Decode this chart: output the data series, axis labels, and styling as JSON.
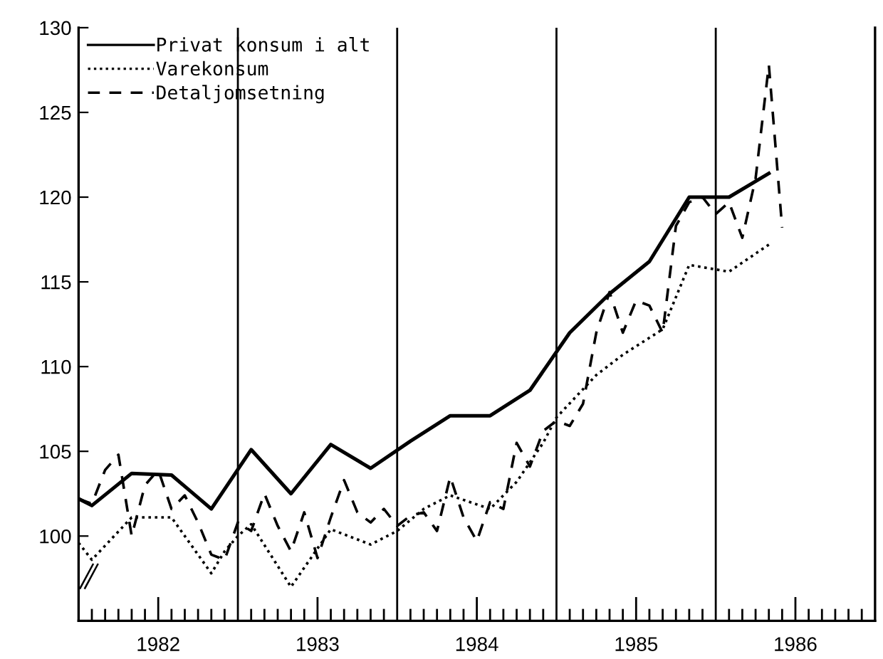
{
  "chart_data": {
    "type": "line",
    "xlim": [
      "1982-01",
      "1987-01"
    ],
    "ylim": [
      95,
      130
    ],
    "yticks": [
      100,
      105,
      110,
      115,
      120,
      125,
      130
    ],
    "xticks": [
      {
        "value": "1982-07",
        "label": "1982"
      },
      {
        "value": "1983-07",
        "label": "1983"
      },
      {
        "value": "1984-07",
        "label": "1984"
      },
      {
        "value": "1985-07",
        "label": "1985"
      },
      {
        "value": "1986-07",
        "label": "1986"
      },
      {
        "value": "1982-02",
        "label": null
      },
      {
        "value": "1982-03",
        "label": null
      },
      {
        "value": "1982-04",
        "label": null
      },
      {
        "value": "1982-05",
        "label": null
      },
      {
        "value": "1982-06",
        "label": null
      },
      {
        "value": "1982-08",
        "label": null
      },
      {
        "value": "1982-09",
        "label": null
      },
      {
        "value": "1982-10",
        "label": null
      },
      {
        "value": "1982-11",
        "label": null
      },
      {
        "value": "1982-12",
        "label": null
      },
      {
        "value": "1983-02",
        "label": null
      },
      {
        "value": "1983-03",
        "label": null
      },
      {
        "value": "1983-04",
        "label": null
      },
      {
        "value": "1983-05",
        "label": null
      },
      {
        "value": "1983-06",
        "label": null
      },
      {
        "value": "1983-08",
        "label": null
      },
      {
        "value": "1983-09",
        "label": null
      },
      {
        "value": "1983-10",
        "label": null
      },
      {
        "value": "1983-11",
        "label": null
      },
      {
        "value": "1983-12",
        "label": null
      },
      {
        "value": "1984-02",
        "label": null
      },
      {
        "value": "1984-03",
        "label": null
      },
      {
        "value": "1984-04",
        "label": null
      },
      {
        "value": "1984-05",
        "label": null
      },
      {
        "value": "1984-06",
        "label": null
      },
      {
        "value": "1984-08",
        "label": null
      },
      {
        "value": "1984-09",
        "label": null
      },
      {
        "value": "1984-10",
        "label": null
      },
      {
        "value": "1984-11",
        "label": null
      },
      {
        "value": "1984-12",
        "label": null
      },
      {
        "value": "1985-02",
        "label": null
      },
      {
        "value": "1985-03",
        "label": null
      },
      {
        "value": "1985-04",
        "label": null
      },
      {
        "value": "1985-05",
        "label": null
      },
      {
        "value": "1985-06",
        "label": null
      },
      {
        "value": "1985-08",
        "label": null
      },
      {
        "value": "1985-09",
        "label": null
      },
      {
        "value": "1985-10",
        "label": null
      },
      {
        "value": "1985-11",
        "label": null
      },
      {
        "value": "1985-12",
        "label": null
      },
      {
        "value": "1986-02",
        "label": null
      },
      {
        "value": "1986-03",
        "label": null
      },
      {
        "value": "1986-04",
        "label": null
      },
      {
        "value": "1986-05",
        "label": null
      },
      {
        "value": "1986-06",
        "label": null
      },
      {
        "value": "1986-08",
        "label": null
      },
      {
        "value": "1986-09",
        "label": null
      },
      {
        "value": "1986-10",
        "label": null
      },
      {
        "value": "1986-11",
        "label": null
      },
      {
        "value": "1986-12",
        "label": null
      }
    ],
    "ref_lines": [
      {
        "axis": "x",
        "value": "1983-01",
        "color": "#000000"
      },
      {
        "axis": "x",
        "value": "1984-01",
        "color": "#000000"
      },
      {
        "axis": "x",
        "value": "1985-01",
        "color": "#000000"
      },
      {
        "axis": "x",
        "value": "1986-01",
        "color": "#000000"
      }
    ],
    "grid": false,
    "legend": "top left",
    "marker": "none",
    "series": [
      {
        "name": "Privat konsum i alt",
        "color": "#000000",
        "line_style": "solid",
        "x": [
          "1982-01",
          "1982-02",
          "1982-05",
          "1982-08",
          "1982-11",
          "1983-02",
          "1983-05",
          "1983-08",
          "1983-11",
          "1984-02",
          "1984-05",
          "1984-08",
          "1984-11",
          "1985-02",
          "1985-05",
          "1985-08",
          "1985-11",
          "1986-02",
          "1986-05"
        ],
        "values": [
          102.2,
          101.8,
          103.7,
          103.6,
          101.6,
          105.1,
          102.5,
          105.4,
          104.0,
          105.6,
          107.1,
          107.1,
          108.6,
          112.0,
          114.3,
          116.2,
          120.0,
          120.0,
          121.4
        ]
      },
      {
        "name": "Varekonsum",
        "color": "#000000",
        "line_style": "dotted",
        "x": [
          "1982-01",
          "1982-02",
          "1982-05",
          "1982-08",
          "1982-11",
          "1982-12",
          "1983-01",
          "1983-02",
          "1983-05",
          "1983-08",
          "1983-11",
          "1984-01",
          "1984-03",
          "1984-05",
          "1984-08",
          "1984-10",
          "1984-12",
          "1985-01",
          "1985-04",
          "1985-06",
          "1985-09",
          "1985-11",
          "1986-02",
          "1986-05"
        ],
        "values": [
          99.6,
          98.6,
          101.1,
          101.1,
          97.8,
          99.1,
          100.0,
          100.7,
          97.0,
          100.4,
          99.5,
          100.3,
          101.6,
          102.4,
          101.6,
          103.2,
          105.5,
          107.0,
          109.5,
          110.7,
          112.2,
          116.0,
          115.6,
          117.2
        ]
      },
      {
        "name": "Detaljomsetning",
        "color": "#000000",
        "line_style": "dashed",
        "x": [
          "1982-01",
          "1982-02",
          "1982-03",
          "1982-04",
          "1982-05",
          "1982-06",
          "1982-07",
          "1982-08",
          "1982-09",
          "1982-10",
          "1982-11",
          "1982-12",
          "1983-01",
          "1983-02",
          "1983-03",
          "1983-04",
          "1983-05",
          "1983-06",
          "1983-07",
          "1983-08",
          "1983-09",
          "1983-10",
          "1983-11",
          "1983-12",
          "1984-01",
          "1984-02",
          "1984-03",
          "1984-04",
          "1984-05",
          "1984-06",
          "1984-07",
          "1984-08",
          "1984-09",
          "1984-10",
          "1984-11",
          "1984-12",
          "1985-01",
          "1985-02",
          "1985-03",
          "1985-04",
          "1985-05",
          "1985-06",
          "1985-07",
          "1985-08",
          "1985-09",
          "1985-10",
          "1985-11",
          "1985-12",
          "1986-01",
          "1986-02",
          "1986-03",
          "1986-04",
          "1986-05",
          "1986-06"
        ],
        "values": [
          102.2,
          101.9,
          103.9,
          104.8,
          100.0,
          103.0,
          103.9,
          101.6,
          102.4,
          100.8,
          98.9,
          98.6,
          100.8,
          100.3,
          102.5,
          100.6,
          99.1,
          101.4,
          98.7,
          101.1,
          103.3,
          101.4,
          100.8,
          101.6,
          100.6,
          101.2,
          101.4,
          100.3,
          103.5,
          101.1,
          99.7,
          102.0,
          101.6,
          105.5,
          104.1,
          106.2,
          106.8,
          106.5,
          107.8,
          112.0,
          114.4,
          112.0,
          113.9,
          113.6,
          112.0,
          118.3,
          119.7,
          120.0,
          119.0,
          119.7,
          117.6,
          121.1,
          127.8,
          118.2
        ]
      }
    ]
  }
}
